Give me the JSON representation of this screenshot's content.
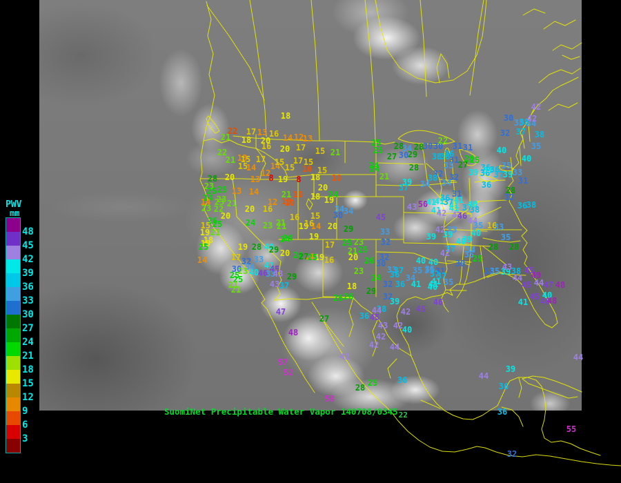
{
  "caption": {
    "text": "SuomiNet Precipitable Water Vapor 140708/0345",
    "suffix": "22"
  },
  "legend": {
    "title": "PWV",
    "units": "mm",
    "labels": [
      48,
      45,
      42,
      39,
      36,
      33,
      30,
      27,
      24,
      21,
      18,
      15,
      12,
      9,
      6,
      3
    ],
    "swatches": [
      "#8c008c",
      "#7030c8",
      "#9f7fe0",
      "#00e8e8",
      "#00c8e8",
      "#3f9fe0",
      "#1f6fd0",
      "#007800",
      "#00a800",
      "#00d800",
      "#9fe000",
      "#e8e800",
      "#b88800",
      "#e88800",
      "#e84800",
      "#d80000",
      "#880000"
    ],
    "text_color": "#00e8e8"
  },
  "color_bins": [
    {
      "min": 51,
      "color": "#d030d0"
    },
    {
      "min": 48,
      "color": "#a020c0"
    },
    {
      "min": 45,
      "color": "#8040d8"
    },
    {
      "min": 42,
      "color": "#9f7fe8"
    },
    {
      "min": 39,
      "color": "#00e8e8"
    },
    {
      "min": 36,
      "color": "#00bfe8"
    },
    {
      "min": 33,
      "color": "#3f9fe8"
    },
    {
      "min": 30,
      "color": "#2f6fd8"
    },
    {
      "min": 27,
      "color": "#00a000"
    },
    {
      "min": 24,
      "color": "#00d800"
    },
    {
      "min": 21,
      "color": "#66e000"
    },
    {
      "min": 18,
      "color": "#e8e800"
    },
    {
      "min": 15,
      "color": "#e0c800"
    },
    {
      "min": 12,
      "color": "#ef8f00"
    },
    {
      "min": 9,
      "color": "#ef5500"
    },
    {
      "min": 6,
      "color": "#e00000"
    },
    {
      "min": 0,
      "color": "#a00000"
    }
  ],
  "stations": [
    [
      18,
      414,
      168
    ],
    [
      22,
      337,
      190,
      "#e05000"
    ],
    [
      17,
      364,
      191
    ],
    [
      13,
      380,
      192
    ],
    [
      16,
      397,
      194
    ],
    [
      21,
      327,
      199
    ],
    [
      18,
      357,
      203
    ],
    [
      20,
      385,
      204
    ],
    [
      14,
      417,
      200
    ],
    [
      12,
      433,
      199
    ],
    [
      13,
      446,
      201
    ],
    [
      16,
      386,
      212
    ],
    [
      20,
      413,
      216
    ],
    [
      17,
      436,
      214
    ],
    [
      15,
      464,
      219
    ],
    [
      21,
      486,
      221
    ],
    [
      22,
      322,
      221
    ],
    [
      21,
      334,
      232
    ],
    [
      13,
      351,
      229
    ],
    [
      15,
      356,
      231
    ],
    [
      17,
      378,
      231
    ],
    [
      15,
      352,
      241
    ],
    [
      14,
      364,
      243
    ],
    [
      14,
      399,
      241
    ],
    [
      12,
      385,
      251
    ],
    [
      13,
      370,
      260
    ],
    [
      8,
      393,
      258
    ],
    [
      20,
      333,
      257
    ],
    [
      28,
      308,
      259
    ],
    [
      23,
      303,
      270
    ],
    [
      25,
      307,
      277
    ],
    [
      25,
      322,
      275
    ],
    [
      13,
      343,
      277
    ],
    [
      14,
      368,
      278
    ],
    [
      24,
      301,
      287
    ],
    [
      23,
      321,
      289
    ],
    [
      15,
      405,
      235
    ],
    [
      17,
      432,
      233
    ],
    [
      15,
      447,
      235
    ],
    [
      15,
      420,
      243
    ],
    [
      10,
      445,
      245
    ],
    [
      15,
      467,
      247
    ],
    [
      19,
      410,
      260
    ],
    [
      8,
      433,
      260
    ],
    [
      18,
      457,
      257
    ],
    [
      10,
      488,
      258
    ],
    [
      20,
      468,
      272
    ],
    [
      21,
      415,
      282
    ],
    [
      10,
      432,
      282
    ],
    [
      18,
      457,
      285
    ],
    [
      24,
      483,
      282
    ],
    [
      10,
      415,
      292
    ],
    [
      19,
      477,
      290
    ],
    [
      34,
      492,
      303
    ],
    [
      34,
      505,
      306
    ],
    [
      30,
      490,
      312
    ],
    [
      16,
      427,
      315
    ],
    [
      15,
      457,
      313
    ],
    [
      21,
      407,
      323
    ],
    [
      19,
      440,
      328
    ],
    [
      14,
      458,
      328
    ],
    [
      20,
      482,
      328
    ],
    [
      29,
      505,
      332
    ],
    [
      24,
      413,
      347
    ],
    [
      19,
      455,
      343
    ],
    [
      17,
      478,
      355
    ],
    [
      25,
      503,
      352
    ],
    [
      23,
      520,
      351
    ],
    [
      21,
      511,
      364
    ],
    [
      25,
      526,
      362
    ],
    [
      20,
      512,
      373
    ],
    [
      14,
      448,
      372
    ],
    [
      19,
      463,
      373
    ],
    [
      16,
      477,
      377
    ],
    [
      45,
      552,
      315
    ],
    [
      33,
      558,
      336
    ],
    [
      32,
      559,
      351
    ],
    [
      24,
      543,
      245
    ],
    [
      21,
      557,
      256
    ],
    [
      14,
      298,
      293
    ],
    [
      23,
      318,
      293
    ],
    [
      21,
      336,
      295
    ],
    [
      23,
      299,
      302
    ],
    [
      22,
      317,
      303
    ],
    [
      20,
      362,
      303
    ],
    [
      16,
      388,
      303
    ],
    [
      12,
      395,
      293
    ],
    [
      10,
      420,
      294
    ],
    [
      20,
      327,
      313
    ],
    [
      26,
      308,
      320
    ],
    [
      15,
      298,
      327
    ],
    [
      25,
      315,
      325
    ],
    [
      24,
      363,
      323
    ],
    [
      23,
      388,
      327
    ],
    [
      21,
      408,
      328
    ],
    [
      16,
      448,
      324
    ],
    [
      19,
      297,
      337
    ],
    [
      21,
      312,
      337
    ],
    [
      18,
      302,
      348
    ],
    [
      19,
      298,
      353
    ],
    [
      24,
      417,
      345
    ],
    [
      25,
      295,
      358
    ],
    [
      19,
      352,
      358
    ],
    [
      28,
      372,
      358
    ],
    [
      40,
      390,
      358
    ],
    [
      14,
      293,
      377
    ],
    [
      17,
      342,
      373
    ],
    [
      32,
      357,
      379
    ],
    [
      33,
      375,
      376
    ],
    [
      34,
      362,
      387
    ],
    [
      30,
      343,
      390
    ],
    [
      23,
      352,
      393
    ],
    [
      25,
      340,
      399
    ],
    [
      40,
      368,
      395
    ],
    [
      46,
      381,
      396
    ],
    [
      33,
      392,
      397
    ],
    [
      29,
      397,
      362
    ],
    [
      20,
      413,
      367
    ],
    [
      24,
      432,
      370
    ],
    [
      27,
      440,
      372
    ],
    [
      25,
      453,
      373
    ],
    [
      41,
      390,
      385
    ],
    [
      45,
      398,
      390
    ],
    [
      43,
      403,
      397
    ],
    [
      29,
      423,
      401
    ],
    [
      43,
      398,
      412
    ],
    [
      37,
      412,
      414
    ],
    [
      25,
      345,
      405
    ],
    [
      21,
      338,
      413
    ],
    [
      21,
      342,
      420
    ],
    [
      25,
      545,
      207
    ],
    [
      25,
      548,
      218
    ],
    [
      28,
      578,
      212
    ],
    [
      34,
      590,
      215
    ],
    [
      27,
      568,
      227
    ],
    [
      30,
      585,
      225
    ],
    [
      29,
      598,
      224
    ],
    [
      24,
      542,
      240
    ],
    [
      28,
      600,
      243
    ],
    [
      28,
      607,
      213
    ],
    [
      30,
      620,
      212
    ],
    [
      30,
      635,
      212
    ],
    [
      22,
      642,
      204
    ],
    [
      31,
      663,
      212
    ],
    [
      38,
      633,
      227
    ],
    [
      36,
      645,
      227
    ],
    [
      31,
      658,
      232
    ],
    [
      33,
      650,
      240
    ],
    [
      32,
      635,
      252
    ],
    [
      38,
      627,
      258
    ],
    [
      27,
      671,
      239
    ],
    [
      32,
      658,
      257
    ],
    [
      36,
      651,
      223
    ],
    [
      31,
      678,
      214
    ],
    [
      26,
      680,
      230
    ],
    [
      25,
      688,
      232
    ],
    [
      39,
      686,
      250
    ],
    [
      36,
      704,
      243
    ],
    [
      36,
      703,
      251
    ],
    [
      39,
      590,
      264
    ],
    [
      37,
      585,
      272
    ],
    [
      34,
      616,
      267
    ],
    [
      34,
      647,
      265
    ],
    [
      36,
      645,
      287
    ],
    [
      31,
      662,
      281
    ],
    [
      41,
      665,
      290
    ],
    [
      41,
      658,
      298
    ],
    [
      43,
      597,
      300
    ],
    [
      50,
      613,
      296
    ],
    [
      41,
      632,
      305
    ],
    [
      42,
      640,
      309
    ],
    [
      42,
      777,
      155
    ],
    [
      30,
      737,
      171
    ],
    [
      35,
      752,
      178
    ],
    [
      38,
      760,
      177
    ],
    [
      34,
      770,
      179
    ],
    [
      42,
      771,
      172
    ],
    [
      32,
      732,
      193
    ],
    [
      37,
      755,
      191
    ],
    [
      38,
      782,
      195
    ],
    [
      35,
      777,
      212
    ],
    [
      40,
      727,
      218
    ],
    [
      40,
      763,
      230
    ],
    [
      39,
      707,
      247
    ],
    [
      36,
      717,
      246
    ],
    [
      37,
      723,
      253
    ],
    [
      35,
      734,
      240
    ],
    [
      39,
      736,
      253
    ],
    [
      33,
      750,
      250
    ],
    [
      31,
      758,
      262
    ],
    [
      36,
      705,
      268
    ],
    [
      28,
      740,
      276
    ],
    [
      32,
      738,
      286
    ],
    [
      36,
      757,
      298
    ],
    [
      38,
      770,
      297
    ],
    [
      41,
      625,
      293
    ],
    [
      41,
      637,
      292
    ],
    [
      37,
      650,
      293
    ],
    [
      41,
      658,
      302
    ],
    [
      43,
      662,
      312
    ],
    [
      46,
      670,
      313
    ],
    [
      37,
      677,
      301
    ],
    [
      38,
      688,
      304
    ],
    [
      40,
      685,
      296
    ],
    [
      44,
      685,
      320
    ],
    [
      35,
      693,
      327
    ],
    [
      40,
      690,
      338
    ],
    [
      33,
      655,
      333
    ],
    [
      39,
      649,
      340
    ],
    [
      39,
      625,
      343
    ],
    [
      42,
      638,
      333
    ],
    [
      40,
      668,
      350
    ],
    [
      39,
      677,
      347
    ],
    [
      16,
      713,
      327
    ],
    [
      33,
      723,
      329
    ],
    [
      35,
      733,
      344
    ],
    [
      28,
      715,
      358
    ],
    [
      28,
      745,
      358
    ],
    [
      37,
      653,
      361
    ],
    [
      42,
      645,
      367
    ],
    [
      34,
      682,
      362
    ],
    [
      35,
      680,
      369
    ],
    [
      25,
      692,
      375
    ],
    [
      30,
      667,
      382
    ],
    [
      35,
      623,
      390
    ],
    [
      37,
      630,
      397
    ],
    [
      41,
      632,
      408
    ],
    [
      40,
      627,
      416
    ],
    [
      35,
      650,
      409
    ],
    [
      32,
      708,
      393
    ],
    [
      35,
      717,
      393
    ],
    [
      39,
      733,
      394
    ],
    [
      43,
      735,
      387
    ],
    [
      38,
      748,
      393
    ],
    [
      44,
      750,
      403
    ],
    [
      45,
      767,
      392
    ],
    [
      49,
      777,
      399
    ],
    [
      45,
      763,
      413
    ],
    [
      44,
      781,
      410
    ],
    [
      47,
      795,
      413
    ],
    [
      48,
      812,
      413
    ],
    [
      45,
      775,
      430
    ],
    [
      40,
      793,
      428
    ],
    [
      46,
      790,
      437
    ],
    [
      48,
      800,
      436
    ],
    [
      41,
      758,
      438
    ],
    [
      44,
      838,
      518
    ],
    [
      39,
      740,
      535
    ],
    [
      36,
      730,
      560
    ],
    [
      44,
      701,
      545
    ],
    [
      26,
      535,
      378
    ],
    [
      32,
      557,
      373
    ],
    [
      30,
      552,
      382
    ],
    [
      23,
      520,
      393
    ],
    [
      40,
      610,
      378
    ],
    [
      40,
      628,
      380
    ],
    [
      33,
      568,
      391
    ],
    [
      37,
      578,
      392
    ],
    [
      36,
      572,
      398
    ],
    [
      34,
      595,
      403
    ],
    [
      35,
      605,
      392
    ],
    [
      35,
      622,
      392
    ],
    [
      31,
      638,
      393
    ],
    [
      37,
      640,
      400
    ],
    [
      24,
      545,
      403
    ],
    [
      32,
      562,
      412
    ],
    [
      36,
      580,
      412
    ],
    [
      41,
      603,
      412
    ],
    [
      41,
      628,
      412
    ],
    [
      18,
      510,
      415
    ],
    [
      29,
      538,
      422
    ],
    [
      32,
      562,
      430
    ],
    [
      39,
      572,
      437
    ],
    [
      26,
      490,
      432
    ],
    [
      46,
      635,
      438
    ],
    [
      38,
      553,
      448
    ],
    [
      36,
      528,
      458
    ],
    [
      45,
      543,
      460
    ],
    [
      42,
      588,
      452
    ],
    [
      45,
      610,
      448
    ],
    [
      43,
      555,
      472
    ],
    [
      42,
      577,
      472
    ],
    [
      40,
      590,
      478
    ],
    [
      42,
      552,
      488
    ],
    [
      44,
      572,
      503
    ],
    [
      42,
      542,
      500
    ],
    [
      47,
      407,
      452
    ],
    [
      48,
      425,
      482
    ],
    [
      57,
      410,
      525
    ],
    [
      52,
      418,
      540
    ],
    [
      27,
      470,
      462
    ],
    [
      26,
      505,
      430
    ],
    [
      44,
      546,
      450
    ],
    [
      28,
      522,
      562
    ],
    [
      25,
      540,
      555
    ],
    [
      36,
      583,
      551
    ],
    [
      42,
      500,
      517
    ],
    [
      58,
      478,
      578
    ],
    [
      36,
      728,
      597
    ],
    [
      55,
      828,
      622
    ],
    [
      32,
      742,
      658
    ]
  ]
}
